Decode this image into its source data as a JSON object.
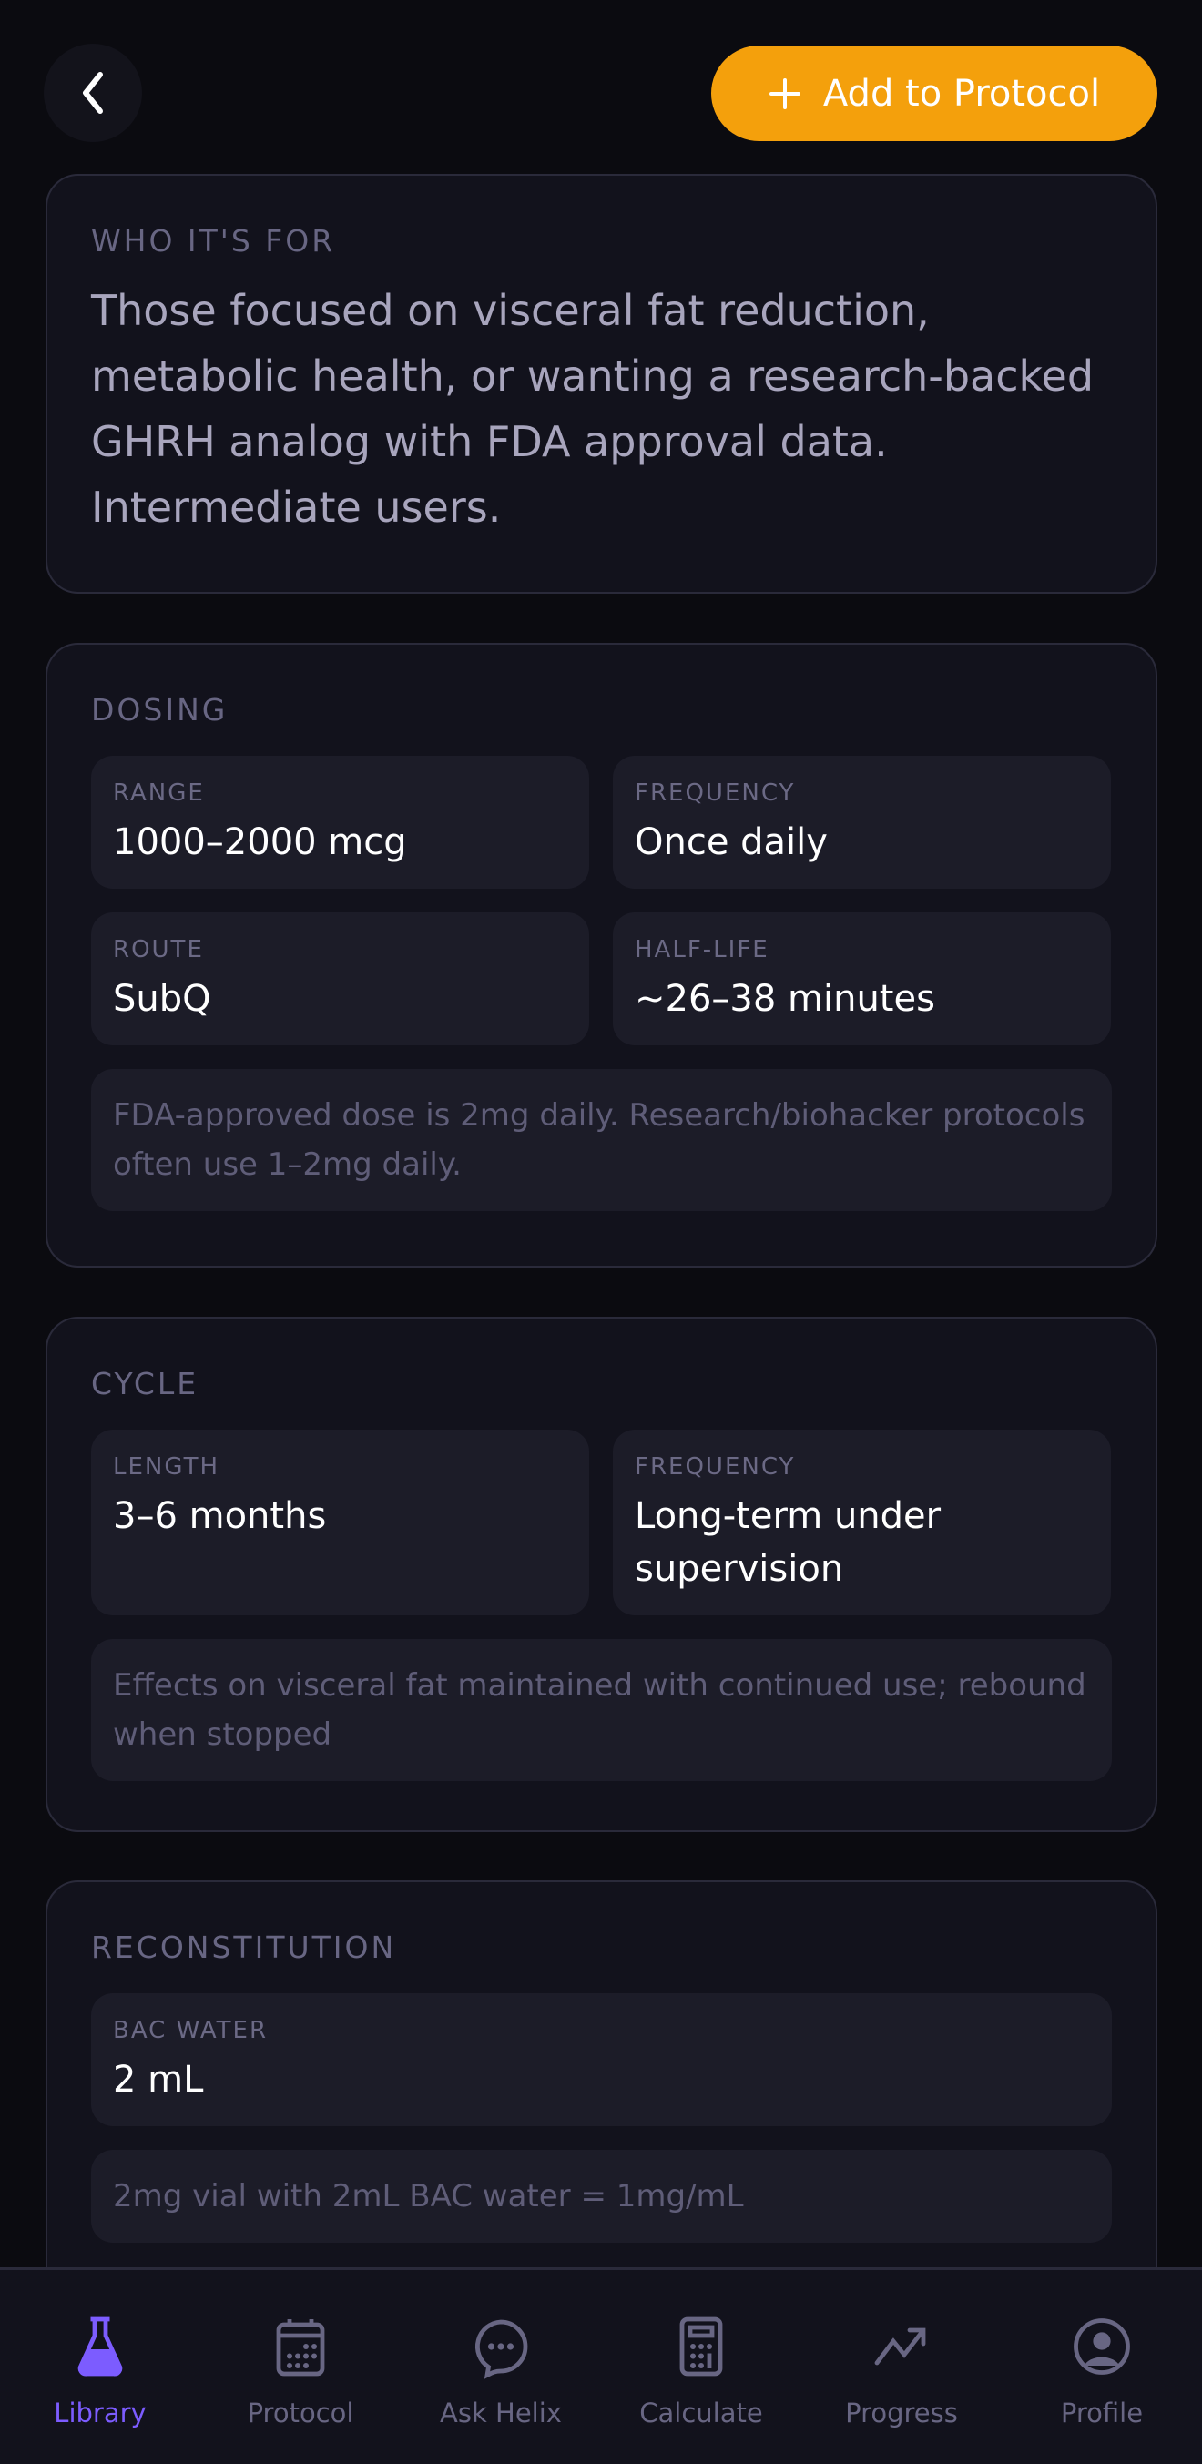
{
  "header": {
    "back_icon": "chevron-left-icon",
    "add_label": "Add to Protocol",
    "add_icon": "plus-icon"
  },
  "colors": {
    "accent": "#f4a00c",
    "active_nav": "#7c5cff"
  },
  "who": {
    "title": "WHO IT'S FOR",
    "text": "Those focused on visceral fat reduction, metabolic health, or wanting a research-backed GHRH analog with FDA approval data. Intermediate users."
  },
  "dosing": {
    "title": "DOSING",
    "cells": [
      {
        "label": "RANGE",
        "value": "1000–2000 mcg"
      },
      {
        "label": "FREQUENCY",
        "value": "Once daily"
      },
      {
        "label": "ROUTE",
        "value": "SubQ"
      },
      {
        "label": "HALF-LIFE",
        "value": "~26–38 minutes"
      }
    ],
    "note": "FDA-approved dose is 2mg daily. Research/biohacker protocols often use 1–2mg daily."
  },
  "cycle": {
    "title": "CYCLE",
    "cells": [
      {
        "label": "LENGTH",
        "value": "3–6 months"
      },
      {
        "label": "FREQUENCY",
        "value": "Long-term under supervision"
      }
    ],
    "note": "Effects on visceral fat maintained with continued use; rebound when stopped"
  },
  "recon": {
    "title": "RECONSTITUTION",
    "cells": [
      {
        "label": "BAC WATER",
        "value": "2 mL"
      }
    ],
    "note": "2mg vial with 2mL BAC water = 1mg/mL"
  },
  "nav": [
    {
      "label": "Library",
      "icon": "flask-icon",
      "active": true
    },
    {
      "label": "Protocol",
      "icon": "calendar-icon"
    },
    {
      "label": "Ask Helix",
      "icon": "chat-bubble-icon"
    },
    {
      "label": "Calculate",
      "icon": "calculator-icon"
    },
    {
      "label": "Progress",
      "icon": "trending-up-icon"
    },
    {
      "label": "Profile",
      "icon": "user-circle-icon"
    }
  ]
}
